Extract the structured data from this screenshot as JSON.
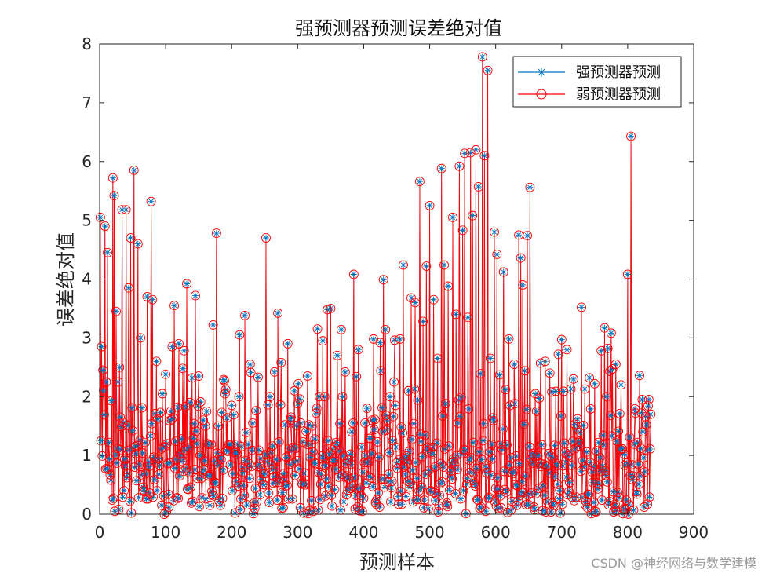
{
  "chart_data": {
    "type": "line",
    "title": "强预测器预测误差绝对值",
    "xlabel": "预测样本",
    "ylabel": "误差绝对值",
    "xlim": [
      0,
      900
    ],
    "ylim": [
      0,
      8
    ],
    "xticks": [
      0,
      100,
      200,
      300,
      400,
      500,
      600,
      700,
      800,
      900
    ],
    "yticks": [
      0,
      1,
      2,
      3,
      4,
      5,
      6,
      7,
      8
    ],
    "grid": false,
    "legend": "top-right",
    "n_samples": 835,
    "series": [
      {
        "name": "强预测器预测",
        "color": "#0072BD",
        "marker": "asterisk",
        "peaks": [
          [
            1,
            5.05
          ],
          [
            3,
            2.85
          ],
          [
            6,
            2.1
          ],
          [
            8,
            4.9
          ],
          [
            10,
            2.25
          ],
          [
            12,
            4.45
          ],
          [
            20,
            5.72
          ],
          [
            22,
            5.42
          ],
          [
            25,
            3.45
          ],
          [
            30,
            2.5
          ],
          [
            34,
            5.18
          ],
          [
            40,
            5.18
          ],
          [
            44,
            3.85
          ],
          [
            47,
            4.7
          ],
          [
            52,
            5.85
          ],
          [
            58,
            4.6
          ],
          [
            62,
            3.0
          ],
          [
            72,
            3.7
          ],
          [
            78,
            5.32
          ],
          [
            80,
            3.65
          ],
          [
            86,
            2.6
          ],
          [
            95,
            2.05
          ],
          [
            100,
            2.38
          ],
          [
            110,
            2.85
          ],
          [
            113,
            3.55
          ],
          [
            120,
            2.9
          ],
          [
            128,
            2.78
          ],
          [
            132,
            3.92
          ],
          [
            140,
            2.32
          ],
          [
            145,
            3.72
          ],
          [
            150,
            2.35
          ],
          [
            160,
            1.5
          ],
          [
            172,
            3.22
          ],
          [
            177,
            4.78
          ],
          [
            190,
            2.05
          ],
          [
            200,
            1.85
          ],
          [
            212,
            3.05
          ],
          [
            220,
            3.38
          ],
          [
            228,
            2.55
          ],
          [
            240,
            2.33
          ],
          [
            252,
            4.7
          ],
          [
            258,
            2.0
          ],
          [
            265,
            2.42
          ],
          [
            270,
            3.42
          ],
          [
            275,
            2.58
          ],
          [
            285,
            2.9
          ],
          [
            295,
            2.1
          ],
          [
            305,
            1.55
          ],
          [
            315,
            2.35
          ],
          [
            330,
            3.15
          ],
          [
            338,
            2.95
          ],
          [
            345,
            3.48
          ],
          [
            350,
            3.5
          ],
          [
            360,
            2.7
          ],
          [
            366,
            3.14
          ],
          [
            372,
            2.42
          ],
          [
            385,
            4.08
          ],
          [
            392,
            2.8
          ],
          [
            405,
            1.8
          ],
          [
            415,
            2.98
          ],
          [
            425,
            2.92
          ],
          [
            430,
            3.99
          ],
          [
            433,
            3.14
          ],
          [
            440,
            2.0
          ],
          [
            447,
            2.96
          ],
          [
            455,
            2.98
          ],
          [
            460,
            4.24
          ],
          [
            468,
            2.1
          ],
          [
            472,
            3.68
          ],
          [
            478,
            3.6
          ],
          [
            485,
            5.66
          ],
          [
            490,
            3.28
          ],
          [
            495,
            4.22
          ],
          [
            500,
            5.25
          ],
          [
            506,
            3.65
          ],
          [
            512,
            2.65
          ],
          [
            518,
            5.88
          ],
          [
            522,
            4.24
          ],
          [
            528,
            3.88
          ],
          [
            535,
            5.05
          ],
          [
            540,
            3.4
          ],
          [
            545,
            5.92
          ],
          [
            550,
            4.83
          ],
          [
            553,
            6.14
          ],
          [
            558,
            3.35
          ],
          [
            562,
            6.15
          ],
          [
            565,
            5.08
          ],
          [
            570,
            6.2
          ],
          [
            574,
            5.57
          ],
          [
            580,
            7.78
          ],
          [
            583,
            6.1
          ],
          [
            588,
            7.55
          ],
          [
            592,
            2.65
          ],
          [
            598,
            4.8
          ],
          [
            602,
            4.42
          ],
          [
            612,
            4.12
          ],
          [
            620,
            2.98
          ],
          [
            628,
            2.55
          ],
          [
            635,
            4.75
          ],
          [
            638,
            4.36
          ],
          [
            641,
            3.9
          ],
          [
            648,
            4.74
          ],
          [
            652,
            5.56
          ],
          [
            660,
            2.05
          ],
          [
            668,
            2.57
          ],
          [
            675,
            2.6
          ],
          [
            685,
            2.08
          ],
          [
            695,
            2.72
          ],
          [
            700,
            2.97
          ],
          [
            708,
            2.8
          ],
          [
            718,
            2.3
          ],
          [
            730,
            3.52
          ],
          [
            742,
            2.32
          ],
          [
            750,
            2.22
          ],
          [
            760,
            2.78
          ],
          [
            765,
            3.17
          ],
          [
            770,
            2.82
          ],
          [
            775,
            3.08
          ],
          [
            782,
            2.55
          ],
          [
            790,
            2.2
          ],
          [
            800,
            4.08
          ],
          [
            805,
            6.43
          ],
          [
            812,
            1.72
          ],
          [
            818,
            2.36
          ],
          [
            822,
            1.95
          ],
          [
            828,
            1.52
          ],
          [
            832,
            1.95
          ],
          [
            835,
            1.7
          ]
        ]
      },
      {
        "name": "弱预测器预测",
        "color": "#FF0000",
        "marker": "circle",
        "peaks": [
          [
            1,
            5.05
          ],
          [
            3,
            2.85
          ],
          [
            6,
            2.1
          ],
          [
            8,
            4.9
          ],
          [
            10,
            2.25
          ],
          [
            12,
            4.45
          ],
          [
            20,
            5.72
          ],
          [
            22,
            5.42
          ],
          [
            25,
            3.45
          ],
          [
            30,
            2.5
          ],
          [
            34,
            5.18
          ],
          [
            40,
            5.18
          ],
          [
            44,
            3.85
          ],
          [
            47,
            4.7
          ],
          [
            52,
            5.85
          ],
          [
            58,
            4.6
          ],
          [
            62,
            3.0
          ],
          [
            72,
            3.7
          ],
          [
            78,
            5.32
          ],
          [
            80,
            3.65
          ],
          [
            86,
            2.6
          ],
          [
            95,
            2.05
          ],
          [
            100,
            2.38
          ],
          [
            110,
            2.85
          ],
          [
            113,
            3.55
          ],
          [
            120,
            2.9
          ],
          [
            128,
            2.78
          ],
          [
            132,
            3.92
          ],
          [
            140,
            2.32
          ],
          [
            145,
            3.72
          ],
          [
            150,
            2.35
          ],
          [
            160,
            1.5
          ],
          [
            172,
            3.22
          ],
          [
            177,
            4.78
          ],
          [
            190,
            2.05
          ],
          [
            200,
            1.85
          ],
          [
            212,
            3.05
          ],
          [
            220,
            3.38
          ],
          [
            228,
            2.55
          ],
          [
            240,
            2.33
          ],
          [
            252,
            4.7
          ],
          [
            258,
            2.0
          ],
          [
            265,
            2.42
          ],
          [
            270,
            3.42
          ],
          [
            275,
            2.58
          ],
          [
            285,
            2.9
          ],
          [
            295,
            2.1
          ],
          [
            305,
            1.55
          ],
          [
            315,
            2.35
          ],
          [
            330,
            3.15
          ],
          [
            338,
            2.95
          ],
          [
            345,
            3.48
          ],
          [
            350,
            3.5
          ],
          [
            360,
            2.7
          ],
          [
            366,
            3.14
          ],
          [
            372,
            2.42
          ],
          [
            385,
            4.08
          ],
          [
            392,
            2.8
          ],
          [
            405,
            1.8
          ],
          [
            415,
            2.98
          ],
          [
            425,
            2.92
          ],
          [
            430,
            3.99
          ],
          [
            433,
            3.14
          ],
          [
            440,
            2.0
          ],
          [
            447,
            2.96
          ],
          [
            455,
            2.98
          ],
          [
            460,
            4.24
          ],
          [
            468,
            2.1
          ],
          [
            472,
            3.68
          ],
          [
            478,
            3.6
          ],
          [
            485,
            5.66
          ],
          [
            490,
            3.28
          ],
          [
            495,
            4.22
          ],
          [
            500,
            5.25
          ],
          [
            506,
            3.65
          ],
          [
            512,
            2.65
          ],
          [
            518,
            5.88
          ],
          [
            522,
            4.24
          ],
          [
            528,
            3.88
          ],
          [
            535,
            5.05
          ],
          [
            540,
            3.4
          ],
          [
            545,
            5.92
          ],
          [
            550,
            4.83
          ],
          [
            553,
            6.14
          ],
          [
            558,
            3.35
          ],
          [
            562,
            6.15
          ],
          [
            565,
            5.08
          ],
          [
            570,
            6.2
          ],
          [
            574,
            5.57
          ],
          [
            580,
            7.78
          ],
          [
            583,
            6.1
          ],
          [
            588,
            7.55
          ],
          [
            592,
            2.65
          ],
          [
            598,
            4.8
          ],
          [
            602,
            4.42
          ],
          [
            612,
            4.12
          ],
          [
            620,
            2.98
          ],
          [
            628,
            2.55
          ],
          [
            635,
            4.75
          ],
          [
            638,
            4.36
          ],
          [
            641,
            3.9
          ],
          [
            648,
            4.74
          ],
          [
            652,
            5.56
          ],
          [
            660,
            2.05
          ],
          [
            668,
            2.57
          ],
          [
            675,
            2.6
          ],
          [
            685,
            2.08
          ],
          [
            695,
            2.72
          ],
          [
            700,
            2.97
          ],
          [
            708,
            2.8
          ],
          [
            718,
            2.3
          ],
          [
            730,
            3.52
          ],
          [
            742,
            2.32
          ],
          [
            750,
            2.22
          ],
          [
            760,
            2.78
          ],
          [
            765,
            3.17
          ],
          [
            770,
            2.82
          ],
          [
            775,
            3.08
          ],
          [
            782,
            2.55
          ],
          [
            790,
            2.2
          ],
          [
            800,
            4.08
          ],
          [
            805,
            6.43
          ],
          [
            812,
            1.72
          ],
          [
            818,
            2.36
          ],
          [
            822,
            1.95
          ],
          [
            828,
            1.52
          ],
          [
            832,
            1.95
          ],
          [
            835,
            1.7
          ]
        ]
      }
    ]
  },
  "watermark": "CSDN @神经网络与数学建模"
}
